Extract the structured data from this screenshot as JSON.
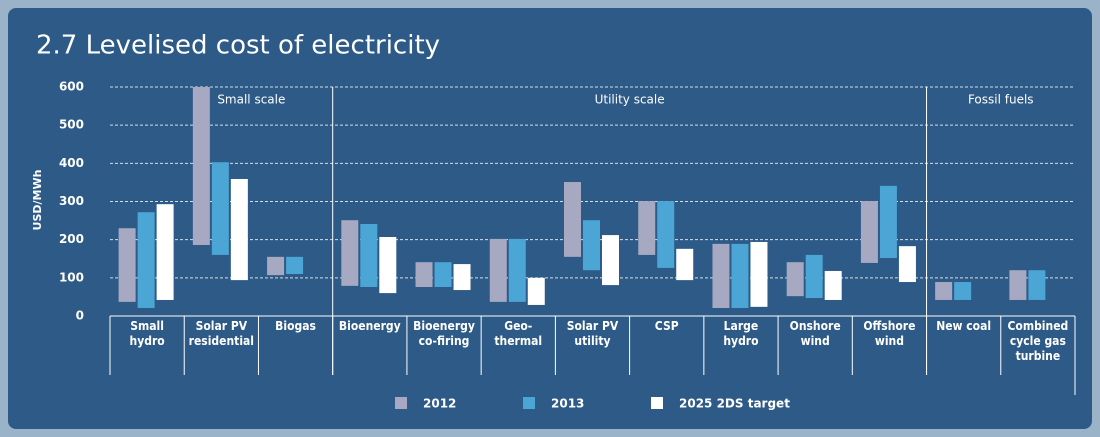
{
  "chart_data": {
    "type": "range-bar",
    "title": "2.7 Levelised cost of electricity",
    "y_label": "USD/MWh",
    "categories": [
      "Small hydro",
      "Solar PV residential",
      "Biogas",
      "Bioenergy",
      "Bioenergy co-firing",
      "Geo-thermal",
      "Solar PV utility",
      "CSP",
      "Large hydro",
      "Onshore wind",
      "Offshore wind",
      "New coal",
      "Combined cycle gas turbine"
    ],
    "groups": [
      {
        "label": "Small scale",
        "count": 3
      },
      {
        "label": "Utility scale",
        "count": 8
      },
      {
        "label": "Fossil fuels",
        "count": 2
      }
    ],
    "series": [
      {
        "name": "2012",
        "color": "#a7a9c3",
        "low": [
          37,
          186,
          107,
          79,
          76,
          37,
          155,
          160,
          21,
          52,
          139,
          42,
          42
        ],
        "high": [
          230,
          600,
          155,
          251,
          141,
          202,
          351,
          301,
          189,
          141,
          301,
          89,
          120
        ]
      },
      {
        "name": "2013",
        "color": "#4ba5d5",
        "low": [
          21,
          160,
          110,
          76,
          76,
          37,
          120,
          126,
          21,
          47,
          152,
          42,
          42
        ],
        "high": [
          272,
          403,
          155,
          241,
          141,
          202,
          251,
          301,
          189,
          160,
          341,
          89,
          120
        ]
      },
      {
        "name": "2025 2DS target",
        "color": "#ffffff",
        "low": [
          42,
          94,
          null,
          60,
          68,
          29,
          81,
          94,
          24,
          42,
          89,
          null,
          null
        ],
        "high": [
          293,
          359,
          null,
          207,
          136,
          100,
          212,
          176,
          194,
          118,
          183,
          null,
          null
        ]
      }
    ],
    "ylim": [
      0,
      600
    ],
    "yticks": [
      0,
      100,
      200,
      300,
      400,
      500,
      600
    ],
    "grid": true
  }
}
